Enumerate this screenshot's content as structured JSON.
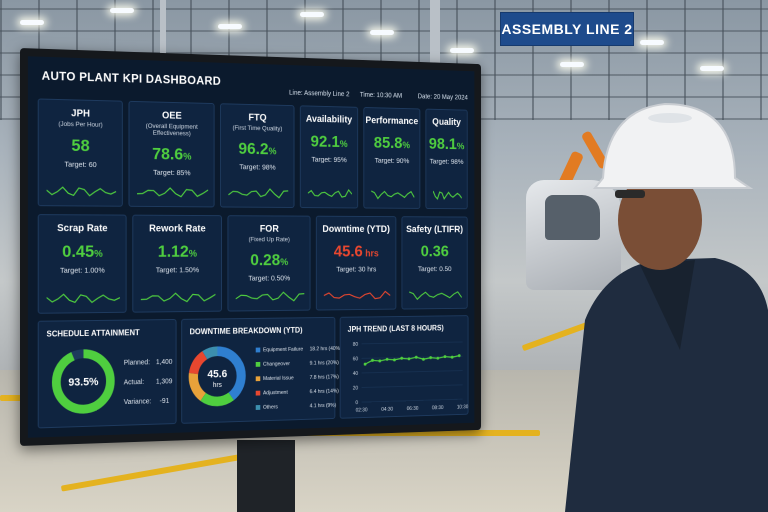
{
  "background": {
    "sign": "ASSEMBLY LINE 2"
  },
  "dashboard": {
    "title": "AUTO PLANT KPI DASHBOARD",
    "line": "Line: Assembly Line 2",
    "time": "Time:  10:30 AM",
    "date": "Date: 20 May 2024",
    "row1": [
      {
        "title": "JPH",
        "subtitle": "(Jobs Per Hour)",
        "value": "58",
        "unit": "",
        "target": "Target: 60",
        "color": "#4fce3f"
      },
      {
        "title": "OEE",
        "subtitle": "(Overall Equipment Effectiveness)",
        "value": "78.6",
        "unit": "%",
        "target": "Target: 85%",
        "color": "#4fce3f"
      },
      {
        "title": "FTQ",
        "subtitle": "(First Time Quality)",
        "value": "96.2",
        "unit": "%",
        "target": "Target: 98%",
        "color": "#4fce3f"
      },
      {
        "title": "Availability",
        "subtitle": "",
        "value": "92.1",
        "unit": "%",
        "target": "Target: 95%",
        "color": "#4fce3f"
      },
      {
        "title": "Performance",
        "subtitle": "",
        "value": "85.8",
        "unit": "%",
        "target": "Target: 90%",
        "color": "#4fce3f"
      },
      {
        "title": "Quality",
        "subtitle": "",
        "value": "98.1",
        "unit": "%",
        "target": "Target: 98%",
        "color": "#4fce3f"
      }
    ],
    "row2": [
      {
        "title": "Scrap Rate",
        "subtitle": "",
        "value": "0.45",
        "unit": "%",
        "target": "Target: 1.00%",
        "color": "#4fce3f"
      },
      {
        "title": "Rework Rate",
        "subtitle": "",
        "value": "1.12",
        "unit": "%",
        "target": "Target: 1.50%",
        "color": "#4fce3f"
      },
      {
        "title": "FOR",
        "subtitle": "(Fixed Up Rate)",
        "value": "0.28",
        "unit": "%",
        "target": "Target: 0.50%",
        "color": "#4fce3f"
      },
      {
        "title": "Downtime (YTD)",
        "subtitle": "",
        "value": "45.6",
        "unit": " hrs",
        "target": "Target: 30 hrs",
        "color": "#e8472f"
      },
      {
        "title": "Safety (LTIFR)",
        "subtitle": "",
        "value": "0.36",
        "unit": "",
        "target": "Target: 0.50",
        "color": "#4fce3f"
      }
    ],
    "schedule": {
      "title": "SCHEDULE ATTAINMENT",
      "percent": "93.5%",
      "fraction": 0.935,
      "planned_label": "Planned:",
      "planned": "1,400",
      "actual_label": "Actual:",
      "actual": "1,309",
      "variance_label": "Variance:",
      "variance": "-91"
    },
    "downtime": {
      "title": "DOWNTIME BREAKDOWN (YTD)",
      "center_value": "45.6",
      "center_unit": "hrs",
      "items": [
        {
          "label": "Equipment Failure",
          "value": "18.2 hrs (40%)",
          "share": 40,
          "color": "#2f7fd0"
        },
        {
          "label": "Changeover",
          "value": "9.1 hrs (20%)",
          "share": 20,
          "color": "#4fce3f"
        },
        {
          "label": "Material Issue",
          "value": "7.8 hrs (17%)",
          "share": 17,
          "color": "#e8a23a"
        },
        {
          "label": "Adjustment",
          "value": "6.4 hrs (14%)",
          "share": 14,
          "color": "#e8472f"
        },
        {
          "label": "Others",
          "value": "4.1 hrs (9%)",
          "share": 9,
          "color": "#3c8fae"
        }
      ]
    },
    "jph_trend": {
      "title": "JPH TREND (LAST 8 HOURS)",
      "y_ticks": [
        "80",
        "60",
        "40",
        "20",
        "0"
      ],
      "x_ticks": [
        "02:30",
        "04:30",
        "06:30",
        "08:30",
        "10:30"
      ],
      "values": [
        52,
        57,
        56,
        58,
        57,
        59,
        58,
        60,
        57,
        59,
        58,
        60,
        59,
        61
      ]
    },
    "accent_green": "#4fce3f",
    "accent_red": "#e8472f"
  }
}
